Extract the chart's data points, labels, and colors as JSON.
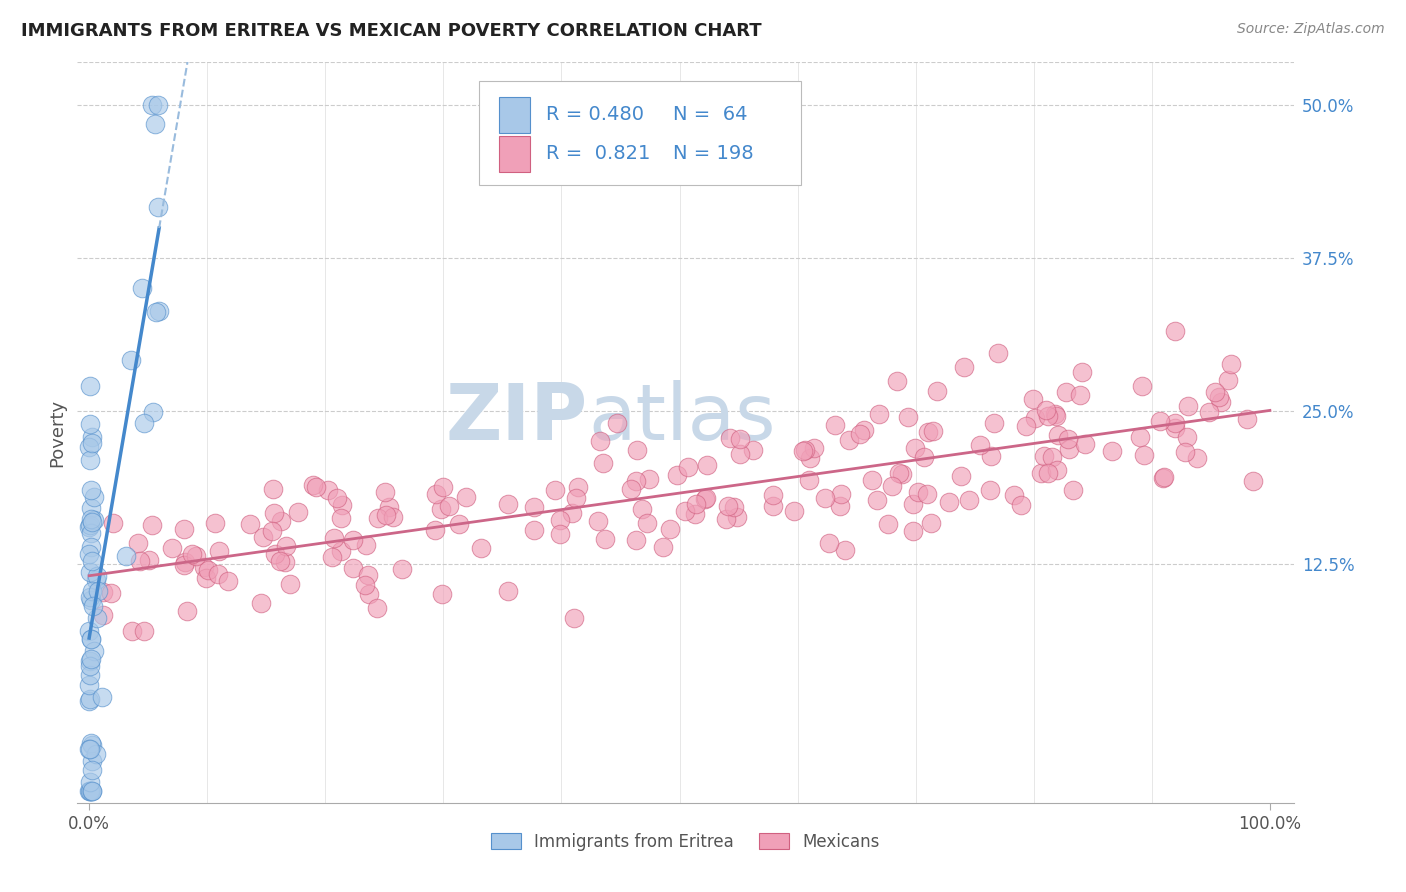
{
  "title": "IMMIGRANTS FROM ERITREA VS MEXICAN POVERTY CORRELATION CHART",
  "source": "Source: ZipAtlas.com",
  "ylabel_label": "Poverty",
  "ytick_labels": [
    "12.5%",
    "25.0%",
    "37.5%",
    "50.0%"
  ],
  "ytick_values": [
    0.125,
    0.25,
    0.375,
    0.5
  ],
  "xtick_labels": [
    "0.0%",
    "100.0%"
  ],
  "xtick_values": [
    0.0,
    1.0
  ],
  "xlim": [
    -0.01,
    1.02
  ],
  "ylim": [
    -0.07,
    0.535
  ],
  "color_eritrea_fill": "#A8C8E8",
  "color_eritrea_edge": "#5590CC",
  "color_mexico_fill": "#F0A0B8",
  "color_mexico_edge": "#D06080",
  "color_line_eritrea": "#4488CC",
  "color_line_eritrea_dash": "#99BBDD",
  "color_line_mexico": "#CC6688",
  "watermark_zip": "ZIP",
  "watermark_atlas": "atlas",
  "watermark_color_zip": "#C8D8E8",
  "watermark_color_atlas": "#C8D8E8",
  "background_color": "#FFFFFF",
  "grid_color": "#CCCCCC",
  "title_color": "#222222",
  "axis_label_color": "#555555",
  "tick_color": "#555555",
  "legend_value_color": "#4488CC",
  "legend_label_color": "#555555",
  "eritrea_R": "0.480",
  "eritrea_N": "64",
  "mexico_R": "0.821",
  "mexico_N": "198",
  "eritrea_seed": 12,
  "mexico_seed": 99
}
